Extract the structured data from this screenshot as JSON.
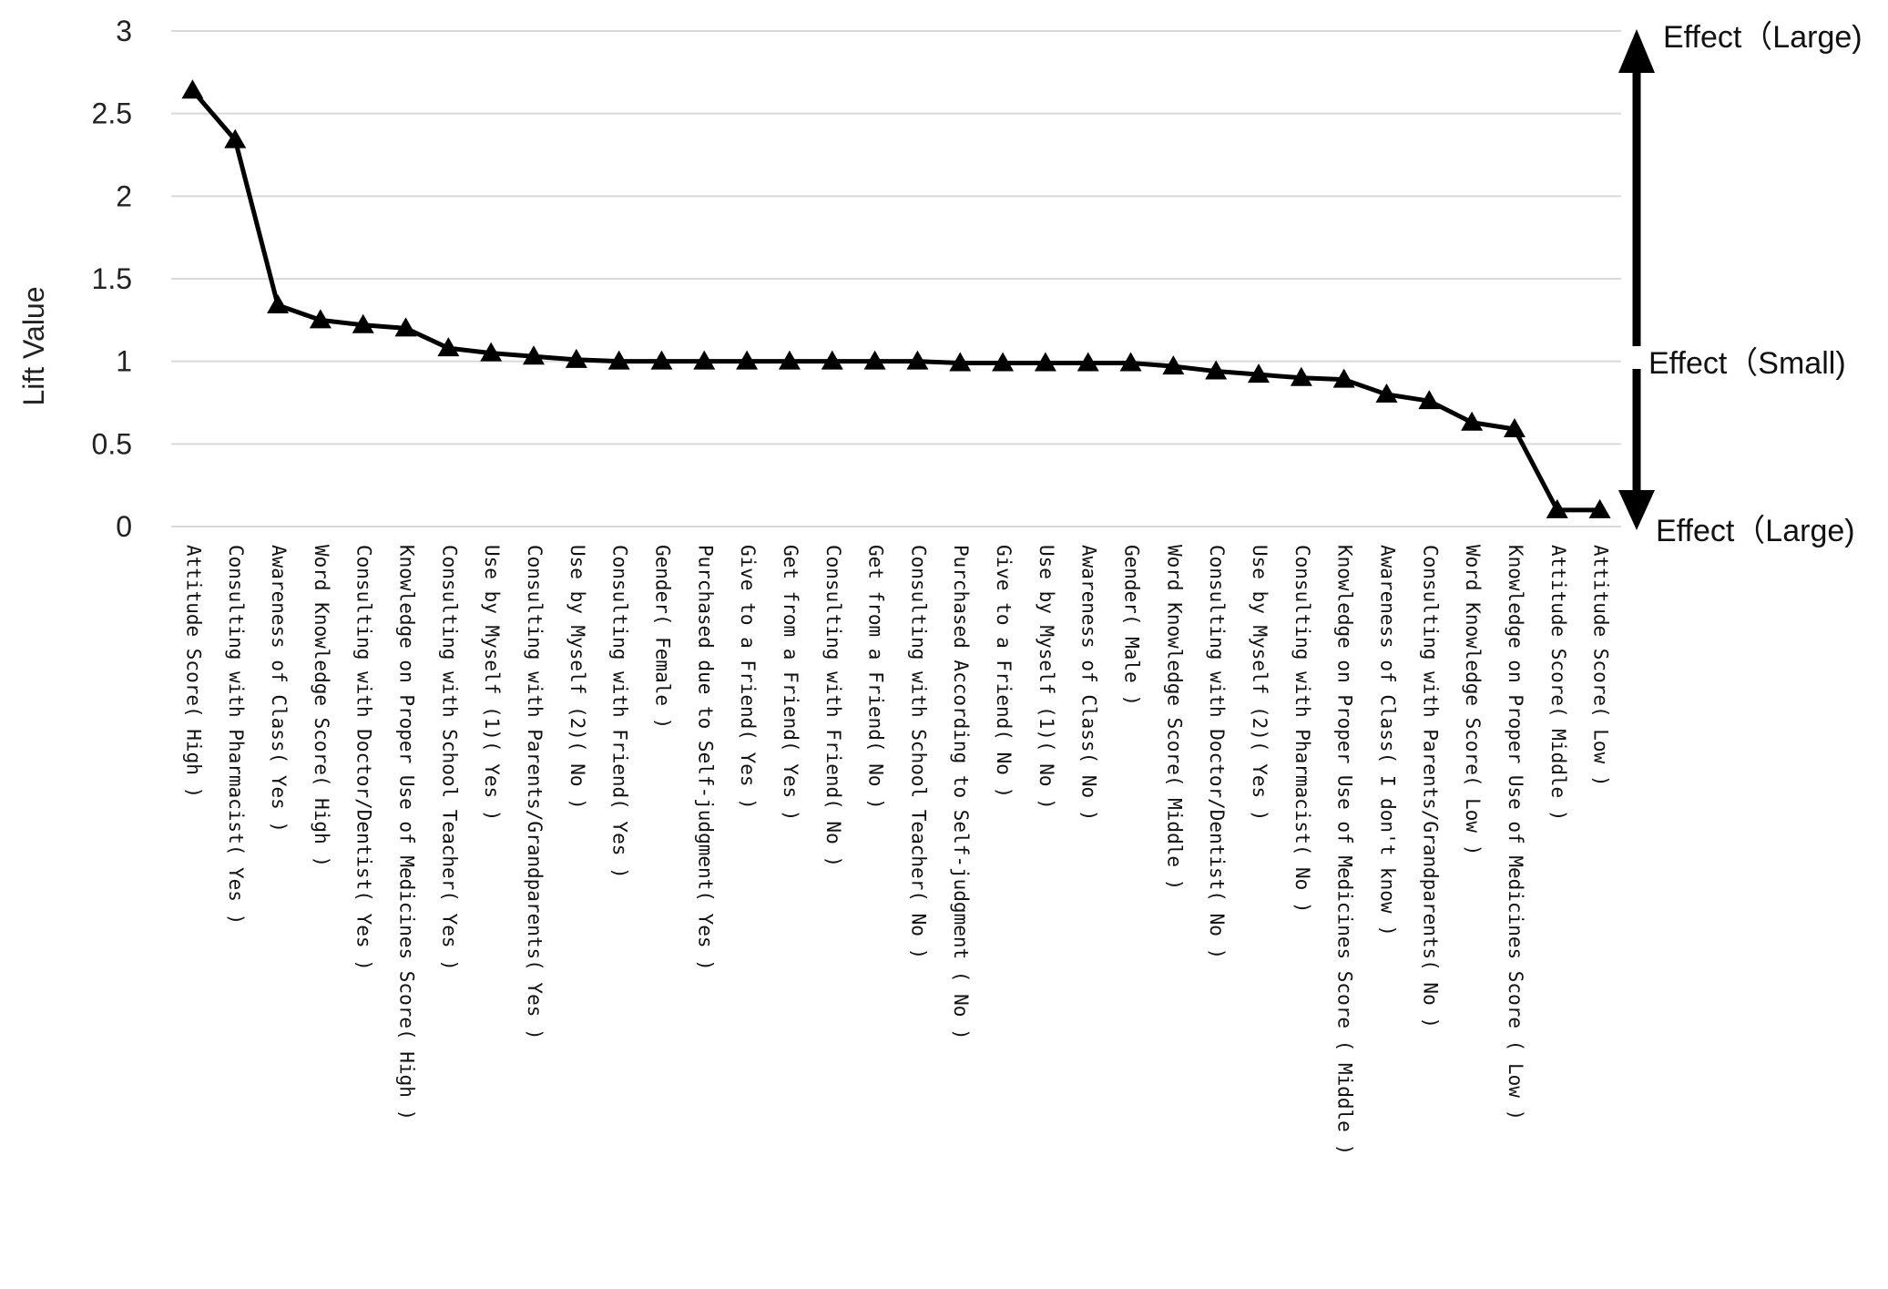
{
  "chart_data": {
    "type": "line",
    "ylabel": "Lift Value",
    "ylim": [
      0,
      3
    ],
    "yticks": [
      "0",
      "0.5",
      "1",
      "1.5",
      "2",
      "2.5",
      "3"
    ],
    "grid": true,
    "marker": "triangle",
    "line_color": "#000000",
    "categories": [
      "Attitude Score( High )",
      "Consulting with Pharmacist( Yes )",
      "Awareness of Class( Yes )",
      "Word Knowledge Score( High )",
      "Consulting with Doctor/Dentist( Yes )",
      "Knowledge on Proper Use of Medicines Score( High )",
      "Consulting with School Teacher( Yes )",
      "Use by Myself (1)( Yes )",
      "Consulting with Parents/Grandparents( Yes )",
      "Use by Myself (2)( No )",
      "Consulting with Friend( Yes )",
      "Gender( Female )",
      "Purchased due to Self-judgment( Yes )",
      "Give to a Friend( Yes )",
      "Get from a Friend( Yes )",
      "Consulting with Friend( No )",
      "Get from a Friend( No )",
      "Consulting with School Teacher( No )",
      "Purchased According to Self-judgment ( No )",
      "Give to a Friend( No )",
      "Use by Myself (1)( No )",
      "Awareness of Class( No )",
      "Gender( Male )",
      "Word Knowledge Score( Middle )",
      "Consulting with Doctor/Dentist( No )",
      "Use by Myself (2)( Yes )",
      "Consulting with Pharmacist( No )",
      "Knowledge on Proper Use of Medicines Score ( Middle )",
      "Awareness of Class( I don't know )",
      "Consulting with Parents/Grandparents( No )",
      "Word Knowledge Score( Low )",
      "Knowledge on Proper Use of Medicines Score ( Low )",
      "Attitude Score( Middle )",
      "Attitude Score( Low )"
    ],
    "series": [
      {
        "values": [
          2.64,
          2.34,
          1.34,
          1.25,
          1.22,
          1.2,
          1.08,
          1.05,
          1.03,
          1.01,
          1.0,
          1.0,
          1.0,
          1.0,
          1.0,
          1.0,
          1.0,
          1.0,
          0.99,
          0.99,
          0.99,
          0.99,
          0.99,
          0.97,
          0.94,
          0.92,
          0.9,
          0.89,
          0.8,
          0.76,
          0.63,
          0.59,
          0.1,
          0.1
        ]
      }
    ],
    "annotations": {
      "top": "Effect（Large)",
      "middle": "Effect（Small)",
      "bottom": "Effect（Large)"
    }
  }
}
